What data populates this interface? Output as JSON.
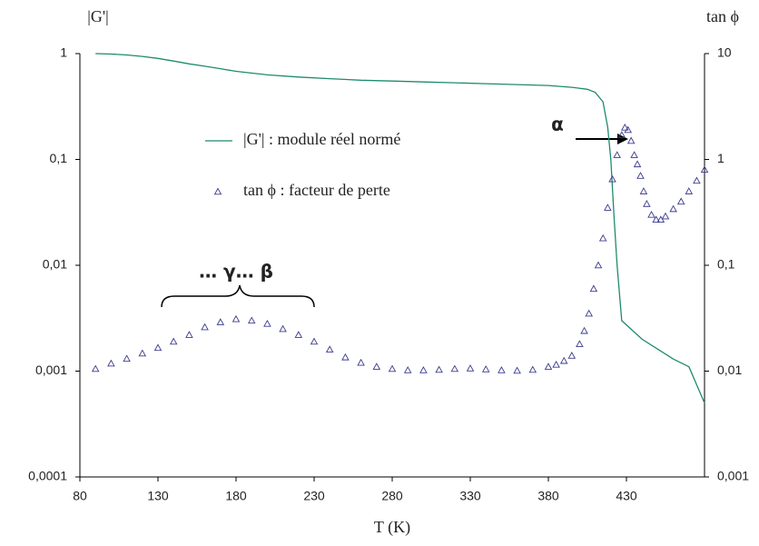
{
  "chart_data": {
    "type": "line",
    "xlabel": "T (K)",
    "ylabel": "|G'|",
    "y2label": "tan ϕ",
    "xlim": [
      80,
      480
    ],
    "xticks": [
      80,
      130,
      180,
      230,
      280,
      330,
      380,
      430
    ],
    "ylim": [
      0.0001,
      1
    ],
    "yticks": [
      {
        "value": 0.0001,
        "label": "0,0001"
      },
      {
        "value": 0.001,
        "label": "0,001"
      },
      {
        "value": 0.01,
        "label": "0,01"
      },
      {
        "value": 0.1,
        "label": "0,1"
      },
      1
    ],
    "y2lim": [
      0.001,
      10
    ],
    "y2ticks": [
      {
        "value": 0.001,
        "label": "0,001"
      },
      {
        "value": 0.01,
        "label": "0,01"
      },
      {
        "value": 0.1,
        "label": "0,1"
      },
      1,
      10
    ],
    "log_scale": true,
    "grid": false,
    "annotations": [
      "α",
      "… γ… β"
    ],
    "series": [
      {
        "name": "|G'| : module réel normé",
        "color": "#1f8a6e",
        "marker": "line",
        "x": [
          90,
          100,
          110,
          120,
          130,
          140,
          150,
          160,
          170,
          180,
          200,
          220,
          240,
          260,
          280,
          300,
          320,
          340,
          360,
          380,
          395,
          405,
          410,
          415,
          418,
          420,
          422,
          424,
          427,
          440,
          460,
          470,
          480
        ],
        "values": [
          1.0,
          0.99,
          0.97,
          0.94,
          0.9,
          0.85,
          0.8,
          0.76,
          0.72,
          0.68,
          0.63,
          0.6,
          0.58,
          0.56,
          0.55,
          0.54,
          0.53,
          0.52,
          0.51,
          0.5,
          0.48,
          0.46,
          0.43,
          0.35,
          0.2,
          0.1,
          0.03,
          0.01,
          0.003,
          0.002,
          0.0013,
          0.0011,
          0.0005
        ]
      },
      {
        "name": "tan ϕ : facteur de perte",
        "color": "#3a3a8c",
        "marker": "triangle",
        "axis": "y2",
        "x": [
          90,
          100,
          110,
          120,
          130,
          140,
          150,
          160,
          170,
          180,
          190,
          200,
          210,
          220,
          230,
          240,
          250,
          260,
          270,
          280,
          290,
          300,
          310,
          320,
          330,
          340,
          350,
          360,
          370,
          380,
          385,
          390,
          395,
          400,
          403,
          406,
          409,
          412,
          415,
          418,
          421,
          424,
          427,
          429,
          431,
          433,
          435,
          437,
          439,
          441,
          443,
          446,
          449,
          452,
          455,
          460,
          465,
          470,
          475,
          480
        ],
        "values": [
          0.0105,
          0.0118,
          0.0131,
          0.0147,
          0.0166,
          0.019,
          0.022,
          0.026,
          0.029,
          0.031,
          0.03,
          0.028,
          0.025,
          0.022,
          0.019,
          0.016,
          0.0135,
          0.012,
          0.011,
          0.0105,
          0.0102,
          0.0102,
          0.0103,
          0.0105,
          0.0106,
          0.0104,
          0.0102,
          0.0101,
          0.0103,
          0.011,
          0.0115,
          0.0125,
          0.014,
          0.018,
          0.024,
          0.035,
          0.06,
          0.1,
          0.18,
          0.35,
          0.65,
          1.1,
          1.7,
          2.0,
          1.9,
          1.5,
          1.1,
          0.9,
          0.7,
          0.5,
          0.38,
          0.3,
          0.27,
          0.27,
          0.29,
          0.34,
          0.4,
          0.5,
          0.63,
          0.8
        ]
      }
    ]
  }
}
